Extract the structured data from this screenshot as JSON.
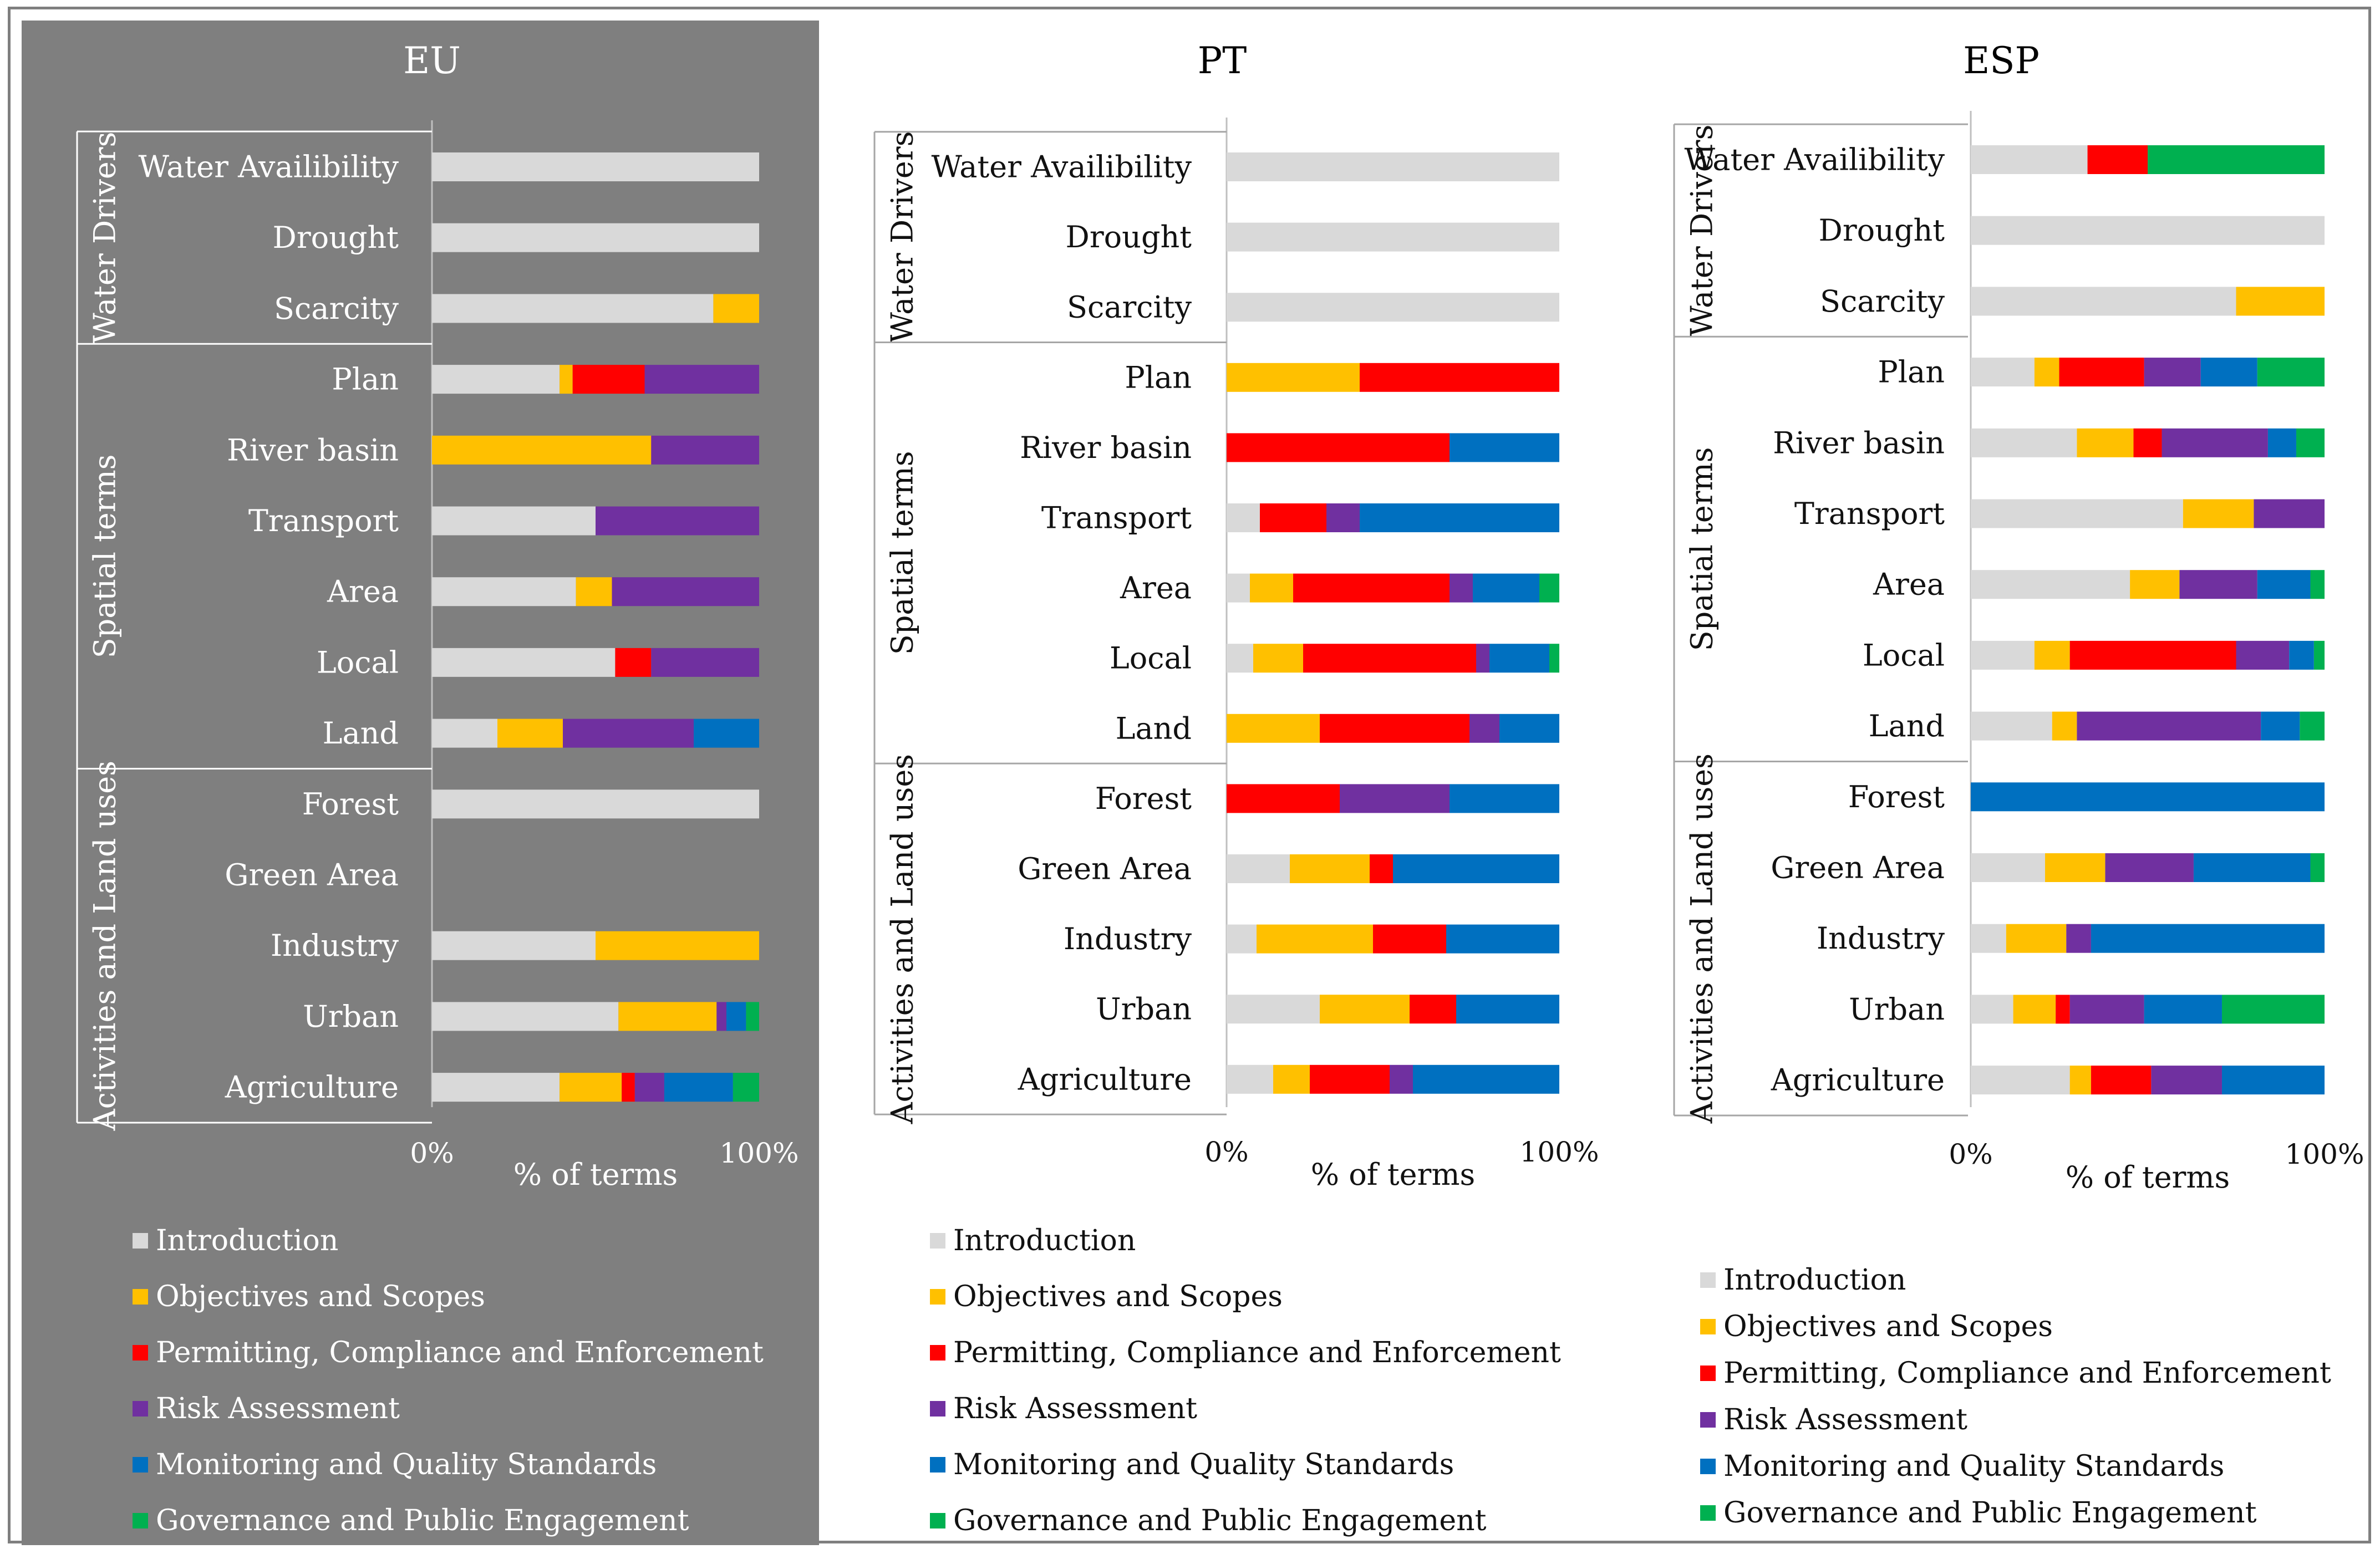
{
  "chart_data": [
    {
      "type": "bar",
      "stacked": "percent",
      "orientation": "horizontal",
      "title": "EU",
      "xlabel": "% of terms",
      "xlim": [
        0,
        100
      ],
      "xticks": [
        "0%",
        "100%"
      ],
      "groups": [
        {
          "name": "Water Drivers",
          "categories": [
            "Water Availibility",
            "Drought",
            "Scarcity"
          ]
        },
        {
          "name": "Spatial terms",
          "categories": [
            "Plan",
            "River basin",
            "Transport",
            "Area",
            "Local",
            "Land"
          ]
        },
        {
          "name": "Activities and Land uses",
          "categories": [
            "Forest",
            "Green Area",
            "Industry",
            "Urban",
            "Agriculture"
          ]
        }
      ],
      "categories": [
        "Water Availibility",
        "Drought",
        "Scarcity",
        "Plan",
        "River basin",
        "Transport",
        "Area",
        "Local",
        "Land",
        "Forest",
        "Green Area",
        "Industry",
        "Urban",
        "Agriculture"
      ],
      "series": [
        {
          "name": "Introduction",
          "values": [
            100,
            100,
            86,
            39,
            0,
            50,
            44,
            56,
            20,
            100,
            0,
            50,
            57,
            39
          ]
        },
        {
          "name": "Objectives and Scopes",
          "values": [
            0,
            0,
            14,
            4,
            67,
            0,
            11,
            0,
            20,
            0,
            0,
            50,
            30,
            19
          ]
        },
        {
          "name": "Permitting, Compliance and Enforcement",
          "values": [
            0,
            0,
            0,
            22,
            0,
            0,
            0,
            11,
            0,
            0,
            0,
            0,
            0,
            4
          ]
        },
        {
          "name": "Risk Assessment",
          "values": [
            0,
            0,
            0,
            35,
            33,
            50,
            45,
            33,
            40,
            0,
            0,
            0,
            3,
            9
          ]
        },
        {
          "name": "Monitoring and Quality Standards",
          "values": [
            0,
            0,
            0,
            0,
            0,
            0,
            0,
            0,
            20,
            0,
            0,
            0,
            6,
            21
          ]
        },
        {
          "name": "Governance and Public Engagement",
          "values": [
            0,
            0,
            0,
            0,
            0,
            0,
            0,
            0,
            0,
            0,
            0,
            0,
            4,
            8
          ]
        }
      ],
      "legend": "bottom"
    },
    {
      "type": "bar",
      "stacked": "percent",
      "orientation": "horizontal",
      "title": "PT",
      "xlabel": "% of terms",
      "xlim": [
        0,
        100
      ],
      "xticks": [
        "0%",
        "100%"
      ],
      "groups": [
        {
          "name": "Water Drivers",
          "categories": [
            "Water Availibility",
            "Drought",
            "Scarcity"
          ]
        },
        {
          "name": "Spatial terms",
          "categories": [
            "Plan",
            "River basin",
            "Transport",
            "Area",
            "Local",
            "Land"
          ]
        },
        {
          "name": "Activities and Land uses",
          "categories": [
            "Forest",
            "Green Area",
            "Industry",
            "Urban",
            "Agriculture"
          ]
        }
      ],
      "categories": [
        "Water Availibility",
        "Drought",
        "Scarcity",
        "Plan",
        "River basin",
        "Transport",
        "Area",
        "Local",
        "Land",
        "Forest",
        "Green Area",
        "Industry",
        "Urban",
        "Agriculture"
      ],
      "series": [
        {
          "name": "Introduction",
          "values": [
            100,
            100,
            100,
            0,
            0,
            10,
            7,
            8,
            0,
            0,
            19,
            9,
            28,
            14
          ]
        },
        {
          "name": "Objectives and Scopes",
          "values": [
            0,
            0,
            0,
            40,
            0,
            0,
            13,
            15,
            28,
            0,
            24,
            35,
            27,
            11
          ]
        },
        {
          "name": "Permitting, Compliance and Enforcement",
          "values": [
            0,
            0,
            0,
            60,
            67,
            20,
            47,
            52,
            45,
            34,
            7,
            22,
            14,
            24
          ]
        },
        {
          "name": "Risk Assessment",
          "values": [
            0,
            0,
            0,
            0,
            0,
            10,
            7,
            4,
            9,
            33,
            0,
            0,
            0,
            7
          ]
        },
        {
          "name": "Monitoring and Quality Standards",
          "values": [
            0,
            0,
            0,
            0,
            33,
            60,
            20,
            18,
            18,
            33,
            50,
            34,
            31,
            44
          ]
        },
        {
          "name": "Governance and Public Engagement",
          "values": [
            0,
            0,
            0,
            0,
            0,
            0,
            6,
            3,
            0,
            0,
            0,
            0,
            0,
            0
          ]
        }
      ],
      "legend": "bottom"
    },
    {
      "type": "bar",
      "stacked": "percent",
      "orientation": "horizontal",
      "title": "ESP",
      "xlabel": "% of terms",
      "xlim": [
        0,
        100
      ],
      "xticks": [
        "0%",
        "100%"
      ],
      "groups": [
        {
          "name": "Water Drivers",
          "categories": [
            "Water Availibility",
            "Drought",
            "Scarcity"
          ]
        },
        {
          "name": "Spatial terms",
          "categories": [
            "Plan",
            "River basin",
            "Transport",
            "Area",
            "Local",
            "Land"
          ]
        },
        {
          "name": "Activities and Land uses",
          "categories": [
            "Forest",
            "Green Area",
            "Industry",
            "Urban",
            "Agriculture"
          ]
        }
      ],
      "categories": [
        "Water Availibility",
        "Drought",
        "Scarcity",
        "Plan",
        "River basin",
        "Transport",
        "Area",
        "Local",
        "Land",
        "Forest",
        "Green Area",
        "Industry",
        "Urban",
        "Agriculture"
      ],
      "series": [
        {
          "name": "Introduction",
          "values": [
            33,
            100,
            75,
            18,
            30,
            60,
            45,
            18,
            23,
            0,
            21,
            10,
            12,
            28
          ]
        },
        {
          "name": "Objectives and Scopes",
          "values": [
            0,
            0,
            25,
            7,
            16,
            20,
            14,
            10,
            7,
            0,
            17,
            17,
            12,
            6
          ]
        },
        {
          "name": "Permitting, Compliance and Enforcement",
          "values": [
            17,
            0,
            0,
            24,
            8,
            0,
            0,
            47,
            0,
            0,
            0,
            0,
            4,
            17
          ]
        },
        {
          "name": "Risk Assessment",
          "values": [
            0,
            0,
            0,
            16,
            30,
            20,
            22,
            15,
            52,
            0,
            25,
            7,
            21,
            20
          ]
        },
        {
          "name": "Monitoring and Quality Standards",
          "values": [
            0,
            0,
            0,
            16,
            8,
            0,
            15,
            7,
            11,
            100,
            33,
            66,
            22,
            29
          ]
        },
        {
          "name": "Governance and Public Engagement",
          "values": [
            50,
            0,
            0,
            19,
            8,
            0,
            4,
            3,
            7,
            0,
            4,
            0,
            29,
            0
          ]
        }
      ],
      "legend": "bottom"
    }
  ],
  "colors": {
    "Introduction": "#d9d9d9",
    "Objectives and Scopes": "#ffc000",
    "Permitting, Compliance and Enforcement": "#ff0000",
    "Risk Assessment": "#7030a0",
    "Monitoring and Quality Standards": "#0070c0",
    "Governance and Public Engagement": "#00b050"
  },
  "legend": {
    "items": [
      "Introduction",
      "Objectives and Scopes",
      "Permitting, Compliance and Enforcement",
      "Risk Assessment",
      "Monitoring and Quality Standards",
      "Governance and Public Engagement"
    ]
  }
}
